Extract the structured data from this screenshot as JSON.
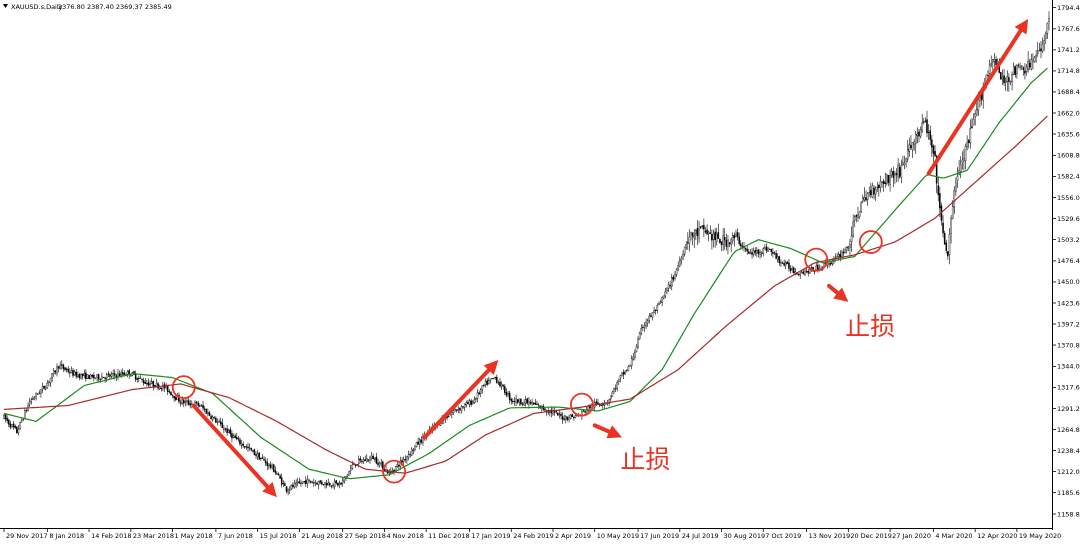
{
  "header": {
    "symbol": "XAUUSD.s,Daily",
    "ohlc": "2376.80 2387.40 2369.37 2385.49"
  },
  "colors": {
    "background": "#ffffff",
    "candle": "#000000",
    "ma_fast": "#1a8a1a",
    "ma_slow": "#a52a2a",
    "annotation": "#ea3323"
  },
  "chart_data": {
    "type": "candlestick",
    "timeframe": "Daily",
    "ylim": [
      1145,
      1800
    ],
    "y_ticks": [
      {
        "label": "1794.40",
        "value": 1794.4
      },
      {
        "label": "1767.60",
        "value": 1767.6
      },
      {
        "label": "1741.20",
        "value": 1741.2
      },
      {
        "label": "1714.80",
        "value": 1714.8
      },
      {
        "label": "1688.40",
        "value": 1688.4
      },
      {
        "label": "1662.00",
        "value": 1662.0
      },
      {
        "label": "1635.60",
        "value": 1635.6
      },
      {
        "label": "1608.80",
        "value": 1608.8
      },
      {
        "label": "1582.40",
        "value": 1582.4
      },
      {
        "label": "1556.00",
        "value": 1556.0
      },
      {
        "label": "1529.60",
        "value": 1529.6
      },
      {
        "label": "1503.20",
        "value": 1503.2
      },
      {
        "label": "1476.40",
        "value": 1476.4
      },
      {
        "label": "1450.00",
        "value": 1450.0
      },
      {
        "label": "1423.60",
        "value": 1423.6
      },
      {
        "label": "1397.20",
        "value": 1397.2
      },
      {
        "label": "1370.80",
        "value": 1370.8
      },
      {
        "label": "1344.00",
        "value": 1344.0
      },
      {
        "label": "1317.60",
        "value": 1317.6
      },
      {
        "label": "1291.20",
        "value": 1291.2
      },
      {
        "label": "1264.80",
        "value": 1264.8
      },
      {
        "label": "1238.40",
        "value": 1238.4
      },
      {
        "label": "1212.00",
        "value": 1212.0
      },
      {
        "label": "1185.60",
        "value": 1185.6
      },
      {
        "label": "1158.80",
        "value": 1158.8
      }
    ],
    "x_ticks": [
      {
        "label": "29 Nov 2017",
        "index": 0
      },
      {
        "label": "8 Jan 2018",
        "index": 27
      },
      {
        "label": "14 Feb 2018",
        "index": 53
      },
      {
        "label": "23 Mar 2018",
        "index": 79
      },
      {
        "label": "1 May 2018",
        "index": 105
      },
      {
        "label": "7 Jun 2018",
        "index": 132
      },
      {
        "label": "15 Jul 2018",
        "index": 158
      },
      {
        "label": "21 Aug 2018",
        "index": 184
      },
      {
        "label": "27 Sep 2018",
        "index": 211
      },
      {
        "label": "4 Nov 2018",
        "index": 237
      },
      {
        "label": "11 Dec 2018",
        "index": 263
      },
      {
        "label": "17 Jan 2019",
        "index": 290
      },
      {
        "label": "24 Feb 2019",
        "index": 316
      },
      {
        "label": "2 Apr 2019",
        "index": 342
      },
      {
        "label": "10 May 2019",
        "index": 368
      },
      {
        "label": "17 Jun 2019",
        "index": 395
      },
      {
        "label": "24 Jul 2019",
        "index": 421
      },
      {
        "label": "30 Aug 2019",
        "index": 447
      },
      {
        "label": "7 Oct 2019",
        "index": 473
      },
      {
        "label": "13 Nov 2019",
        "index": 500
      },
      {
        "label": "20 Dec 2019",
        "index": 526
      },
      {
        "label": "27 Jan 2020",
        "index": 552
      },
      {
        "label": "4 Mar 2020",
        "index": 579
      },
      {
        "label": "12 Apr 2020",
        "index": 605
      },
      {
        "label": "19 May 2020",
        "index": 631
      }
    ],
    "bar_count": 652,
    "price_path": [
      [
        0,
        1280
      ],
      [
        8,
        1262
      ],
      [
        16,
        1300
      ],
      [
        26,
        1320
      ],
      [
        34,
        1345
      ],
      [
        44,
        1334
      ],
      [
        56,
        1330
      ],
      [
        66,
        1332
      ],
      [
        78,
        1336
      ],
      [
        88,
        1324
      ],
      [
        100,
        1318
      ],
      [
        110,
        1300
      ],
      [
        122,
        1295
      ],
      [
        134,
        1272
      ],
      [
        146,
        1250
      ],
      [
        158,
        1232
      ],
      [
        168,
        1215
      ],
      [
        176,
        1190
      ],
      [
        188,
        1200
      ],
      [
        198,
        1198
      ],
      [
        210,
        1196
      ],
      [
        218,
        1222
      ],
      [
        230,
        1230
      ],
      [
        240,
        1210
      ],
      [
        248,
        1225
      ],
      [
        258,
        1248
      ],
      [
        270,
        1272
      ],
      [
        280,
        1288
      ],
      [
        292,
        1300
      ],
      [
        300,
        1322
      ],
      [
        306,
        1330
      ],
      [
        316,
        1302
      ],
      [
        328,
        1298
      ],
      [
        340,
        1288
      ],
      [
        348,
        1280
      ],
      [
        358,
        1282
      ],
      [
        366,
        1295
      ],
      [
        376,
        1300
      ],
      [
        384,
        1330
      ],
      [
        390,
        1345
      ],
      [
        398,
        1395
      ],
      [
        408,
        1420
      ],
      [
        418,
        1460
      ],
      [
        426,
        1505
      ],
      [
        436,
        1515
      ],
      [
        446,
        1500
      ],
      [
        456,
        1505
      ],
      [
        464,
        1485
      ],
      [
        476,
        1492
      ],
      [
        484,
        1475
      ],
      [
        494,
        1462
      ],
      [
        502,
        1464
      ],
      [
        510,
        1470
      ],
      [
        518,
        1478
      ],
      [
        526,
        1495
      ],
      [
        532,
        1540
      ],
      [
        540,
        1565
      ],
      [
        550,
        1580
      ],
      [
        558,
        1590
      ],
      [
        566,
        1625
      ],
      [
        574,
        1650
      ],
      [
        580,
        1600
      ],
      [
        584,
        1520
      ],
      [
        588,
        1480
      ],
      [
        592,
        1570
      ],
      [
        600,
        1620
      ],
      [
        608,
        1680
      ],
      [
        616,
        1735
      ],
      [
        622,
        1700
      ],
      [
        630,
        1715
      ],
      [
        638,
        1720
      ],
      [
        646,
        1740
      ],
      [
        651,
        1785
      ]
    ],
    "moving_averages": [
      {
        "color": "#1a8a1a",
        "values": [
          [
            0,
            1285
          ],
          [
            20,
            1275
          ],
          [
            50,
            1320
          ],
          [
            80,
            1335
          ],
          [
            105,
            1330
          ],
          [
            130,
            1310
          ],
          [
            160,
            1255
          ],
          [
            190,
            1215
          ],
          [
            215,
            1203
          ],
          [
            240,
            1208
          ],
          [
            265,
            1235
          ],
          [
            290,
            1270
          ],
          [
            315,
            1292
          ],
          [
            345,
            1293
          ],
          [
            370,
            1288
          ],
          [
            390,
            1300
          ],
          [
            410,
            1340
          ],
          [
            430,
            1410
          ],
          [
            455,
            1488
          ],
          [
            470,
            1503
          ],
          [
            490,
            1492
          ],
          [
            510,
            1474
          ],
          [
            530,
            1482
          ],
          [
            555,
            1540
          ],
          [
            575,
            1585
          ],
          [
            585,
            1580
          ],
          [
            600,
            1590
          ],
          [
            620,
            1650
          ],
          [
            640,
            1700
          ],
          [
            651,
            1720
          ]
        ]
      },
      {
        "color": "#a52a2a",
        "values": [
          [
            0,
            1290
          ],
          [
            40,
            1295
          ],
          [
            80,
            1315
          ],
          [
            110,
            1322
          ],
          [
            140,
            1305
          ],
          [
            170,
            1275
          ],
          [
            200,
            1240
          ],
          [
            225,
            1215
          ],
          [
            250,
            1210
          ],
          [
            275,
            1225
          ],
          [
            300,
            1258
          ],
          [
            330,
            1285
          ],
          [
            360,
            1293
          ],
          [
            390,
            1303
          ],
          [
            420,
            1340
          ],
          [
            450,
            1395
          ],
          [
            480,
            1445
          ],
          [
            505,
            1474
          ],
          [
            530,
            1484
          ],
          [
            555,
            1500
          ],
          [
            580,
            1530
          ],
          [
            605,
            1575
          ],
          [
            630,
            1620
          ],
          [
            651,
            1660
          ]
        ]
      }
    ],
    "annotations": {
      "circles": [
        {
          "index": 112,
          "value": 1318
        },
        {
          "index": 243,
          "value": 1212
        },
        {
          "index": 360,
          "value": 1296
        },
        {
          "index": 506,
          "value": 1478
        },
        {
          "index": 540,
          "value": 1500
        }
      ],
      "arrows": [
        {
          "from": [
            118,
            1295
          ],
          "to": [
            170,
            1180
          ],
          "direction": "down"
        },
        {
          "from": [
            262,
            1255
          ],
          "to": [
            308,
            1352
          ],
          "direction": "up"
        },
        {
          "from": [
            368,
            1270
          ],
          "to": [
            385,
            1255
          ],
          "direction": "down"
        },
        {
          "from": [
            514,
            1445
          ],
          "to": [
            526,
            1425
          ],
          "direction": "down"
        },
        {
          "from": [
            576,
            1586
          ],
          "to": [
            638,
            1780
          ],
          "direction": "up"
        }
      ],
      "labels": [
        {
          "text": "止损",
          "index": 524,
          "value": 1395
        },
        {
          "text": "止损",
          "index": 384,
          "value": 1228
        }
      ]
    }
  }
}
